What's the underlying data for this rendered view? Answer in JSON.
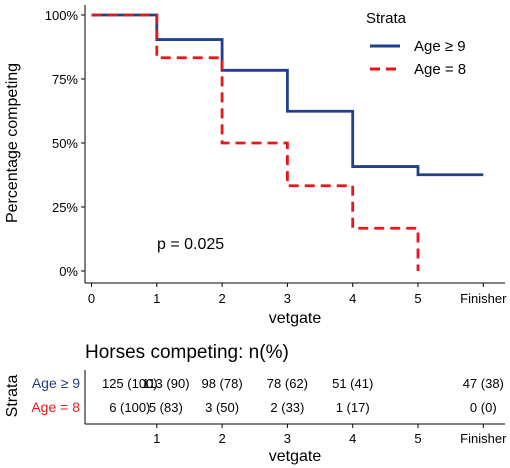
{
  "chart_data": [
    {
      "type": "line",
      "step": true,
      "xlabel": "vetgate",
      "ylabel": "Percentage competing",
      "x_ticks": [
        "0",
        "1",
        "2",
        "3",
        "4",
        "5",
        "Finisher"
      ],
      "y_ticks": [
        "0%",
        "25%",
        "50%",
        "75%",
        "100%"
      ],
      "ylim": [
        0,
        100
      ],
      "annotation": "p = 0.025",
      "legend": {
        "title": "Strata",
        "position": "top-right"
      },
      "series": [
        {
          "name": "Age ≥ 9",
          "color": "#1f3f8f",
          "dash": "solid",
          "steps": [
            100,
            90.4,
            78.4,
            62.4,
            40.8,
            37.6
          ]
        },
        {
          "name": "Age = 8",
          "color": "#e8161b",
          "dash": "dashed",
          "steps": [
            100,
            83.3,
            50,
            33.3,
            16.7,
            0
          ]
        }
      ]
    },
    {
      "type": "table",
      "title": "Horses competing: n(%)",
      "xlabel": "vetgate",
      "ylabel": "Strata",
      "x_ticks": [
        "1",
        "2",
        "3",
        "4",
        "5",
        "Finisher"
      ],
      "rows": [
        {
          "label": "Age ≥ 9",
          "color": "#1f3f8f",
          "cells": [
            "125 (100)",
            "113 (90)",
            "98 (78)",
            "78 (62)",
            "51 (41)",
            "47 (38)"
          ]
        },
        {
          "label": "Age = 8",
          "color": "#e8161b",
          "cells": [
            "6 (100)",
            "5 (83)",
            "3 (50)",
            "2 (33)",
            "1 (17)",
            "0 (0)"
          ]
        }
      ]
    }
  ]
}
